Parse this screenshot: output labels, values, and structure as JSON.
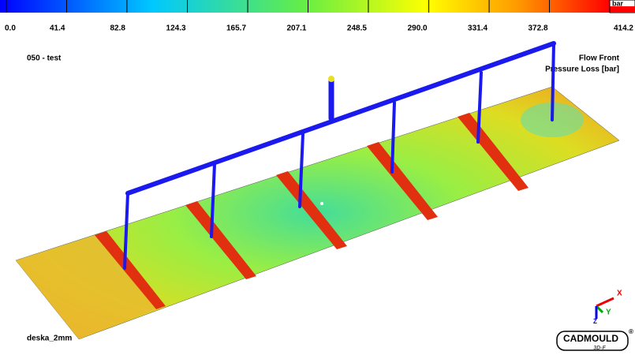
{
  "colorbar": {
    "unit": "bar",
    "range": [
      0,
      414.2
    ],
    "ticks": [
      {
        "value": 0,
        "label": "0.0"
      },
      41.4,
      82.8,
      124.3,
      165.7,
      207.1,
      248.5,
      {
        "value": 290,
        "label": "290.0"
      },
      331.4,
      372.8,
      414.2
    ]
  },
  "project": "050 - test",
  "result": {
    "line1": "Flow Front",
    "line2": "Pressure Loss [bar]"
  },
  "part": "deska_2mm",
  "axes": {
    "x": "X",
    "y": "Y",
    "z": "Z"
  },
  "logo": {
    "name": "CADMOULD",
    "version": "3D-F",
    "mark": "®"
  }
}
